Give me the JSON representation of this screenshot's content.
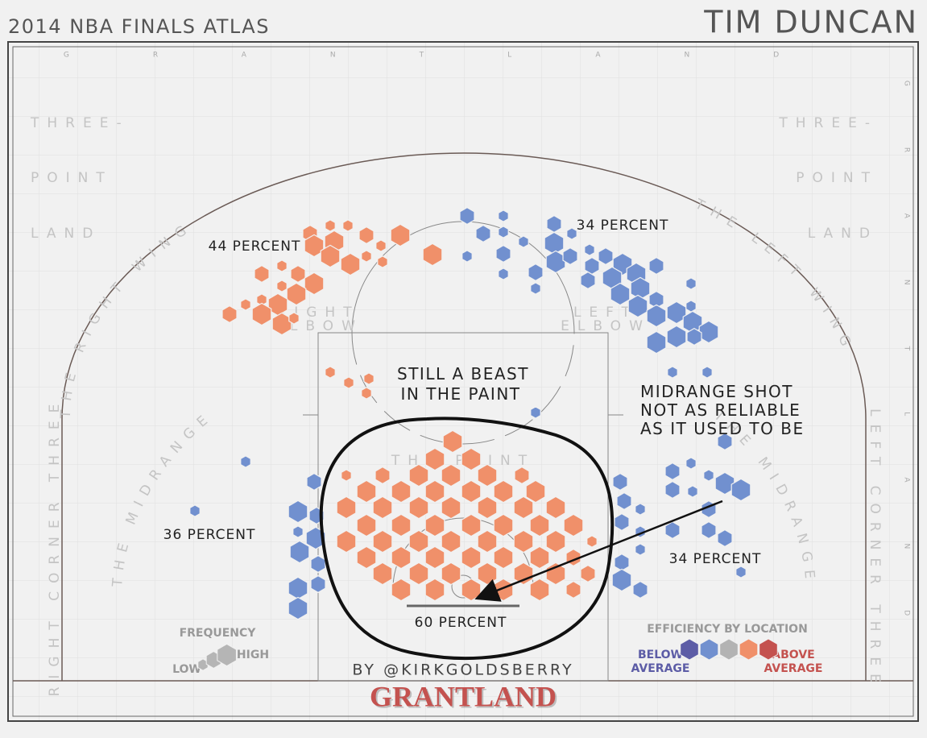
{
  "chart_data": {
    "type": "hexbin",
    "title": "2014 NBA FINALS ATLAS",
    "player": "TIM DUNCAN",
    "watermark": "GRANTLAND",
    "xlim": [
      -25,
      25
    ],
    "ylim": [
      -5.75,
      33
    ],
    "zones": {
      "three_left": [
        "THREE-",
        "POINT",
        "LAND"
      ],
      "three_right": [
        "THREE-",
        "POINT",
        "LAND"
      ],
      "right_wing": "THE RIGHT WING",
      "left_wing": "THE LEFT WING",
      "midrange_left": "THE MIDRANGE",
      "midrange_right": "THE MIDRANGE",
      "right_elbow": [
        "RIGHT",
        "ELBOW"
      ],
      "left_elbow": [
        "LEFT",
        "ELBOW"
      ],
      "paint": "THE PAINT",
      "right_corner": "RIGHT CORNER THREE",
      "left_corner": "LEFT CORNER THREE"
    },
    "annotations": {
      "right_wing": "44 PERCENT",
      "left_wing": "34 PERCENT",
      "right_mid": "36 PERCENT",
      "left_mid": "34 PERCENT",
      "paint": "60 PERCENT",
      "paint_note": [
        "STILL A BEAST",
        "IN THE PAINT"
      ],
      "mid_note": [
        "MIDRANGE SHOT",
        "NOT AS RELIABLE",
        "AS IT USED TO BE"
      ]
    },
    "hexes": {
      "x": [
        -9.5,
        -8.25,
        -7.15,
        -9.25,
        -8,
        -8.25,
        -6,
        -5.1,
        -3.9,
        -7,
        -6,
        -5,
        -1.9,
        -11.25,
        -12.5,
        -11.25,
        -10.25,
        -9.25,
        -10.35,
        -11.5,
        -12.5,
        -12.5,
        -13.5,
        -14.5,
        -11.25,
        -10.5,
        -8.25,
        -7.1,
        -6,
        -5.85,
        -0.65,
        -1.75,
        0.5,
        -7.25,
        -5,
        -2.75,
        -0.75,
        1.5,
        3.65,
        -6,
        -3.85,
        -1.75,
        0.5,
        2.5,
        4.5,
        -7.25,
        -5,
        -2.75,
        -0.75,
        1.5,
        3.75,
        5.75,
        -6,
        -3.85,
        -1.75,
        0.5,
        2.5,
        4.75,
        6.85,
        -7.25,
        -5,
        -2.75,
        -0.75,
        1.5,
        3.75,
        5.75,
        8,
        -6,
        -3.85,
        -1.75,
        0.5,
        2.5,
        4.75,
        6.85,
        -5,
        -2.75,
        -0.75,
        1.5,
        3.75,
        5.75,
        7.75,
        -3.85,
        -1.75,
        0.5,
        2.5,
        4.75,
        6.85,
        0.25,
        1.25,
        2.5,
        0.25,
        2.5,
        2.5,
        2.5,
        3.75,
        4.5,
        4.5,
        5.65,
        5.65,
        6.75,
        5.75,
        6.65,
        7.85,
        8,
        7.75,
        8.85,
        9.9,
        10.75,
        12,
        9.25,
        9.75,
        11,
        10.85,
        12,
        12,
        13.25,
        14.15,
        14.15,
        14.25,
        15.25,
        12,
        13.25,
        14.35,
        13,
        15.15,
        16.25,
        14.15,
        13,
        15.25,
        16.25,
        17.25,
        13,
        14.25,
        15.25,
        13,
        15.25,
        16.25,
        17.25,
        4.5,
        9.75,
        10,
        11,
        9.85,
        11,
        11,
        9.85,
        9.85,
        11,
        -13.5,
        -16.65,
        -9.25,
        -10.25,
        -9.1,
        -9.15,
        -10.25,
        -10.15,
        -9,
        -10.25,
        -10.25,
        -9
      ],
      "y": [
        22,
        22.5,
        22.5,
        21.25,
        21.5,
        20.6,
        21.9,
        21.25,
        21.9,
        20.1,
        20.6,
        20.25,
        20.7,
        20,
        19.5,
        18.75,
        19.5,
        18.9,
        18.25,
        17.6,
        17.9,
        17,
        17.6,
        17,
        16.4,
        16.75,
        13.4,
        12.75,
        12.1,
        13,
        9.1,
        8,
        8,
        7,
        7,
        7,
        7,
        7,
        7,
        6,
        6,
        6,
        6,
        6,
        6,
        5,
        5,
        5,
        5,
        5,
        5,
        5,
        3.9,
        3.9,
        3.9,
        3.9,
        3.9,
        3.9,
        3.9,
        2.9,
        2.9,
        2.9,
        2.9,
        2.9,
        2.9,
        2.9,
        2.9,
        1.9,
        1.9,
        1.9,
        1.9,
        1.9,
        1.9,
        1.9,
        0.9,
        0.9,
        0.9,
        0.9,
        0.9,
        0.9,
        0.9,
        -0.1,
        -0.1,
        -0.1,
        -0.1,
        -0.1,
        -0.1,
        23.1,
        22,
        23.1,
        20.6,
        22.1,
        20.75,
        19.5,
        21.5,
        19.6,
        18.6,
        22.6,
        21.4,
        22,
        20.25,
        20.6,
        21,
        20,
        19.1,
        20.6,
        20.1,
        19.5,
        20,
        19.25,
        18.25,
        18.6,
        17.5,
        17.9,
        16.9,
        17.1,
        18.9,
        17.5,
        16.5,
        15.9,
        15.25,
        15.6,
        15.6,
        13.4,
        13.4,
        9.1,
        7.75,
        7.25,
        7,
        6.5,
        6.1,
        6.1,
        6,
        4.9,
        3.6,
        3.6,
        3.1,
        1,
        10.9,
        6.6,
        5.4,
        4.9,
        4.1,
        3.5,
        2.4,
        1.6,
        0.5,
        -0.1,
        7.85,
        4.8,
        6.6,
        4.75,
        4.5,
        3.1,
        3.5,
        2.25,
        1.5,
        0,
        -1.25,
        0.25
      ],
      "frequency": [
        2,
        1,
        1,
        3,
        3,
        3,
        2,
        1,
        3,
        3,
        1,
        1,
        3,
        1,
        2,
        1,
        2,
        3,
        3,
        3,
        1,
        3,
        1,
        2,
        3,
        1,
        1,
        1,
        1,
        1,
        3,
        3,
        3,
        1,
        2,
        3,
        3,
        3,
        2,
        3,
        3,
        3,
        3,
        3,
        3,
        3,
        3,
        3,
        3,
        3,
        3,
        3,
        3,
        3,
        3,
        3,
        3,
        3,
        3,
        3,
        3,
        3,
        3,
        3,
        3,
        3,
        1,
        3,
        3,
        3,
        3,
        3,
        3,
        2,
        3,
        3,
        3,
        3,
        3,
        3,
        2,
        3,
        3,
        3,
        3,
        3,
        2,
        2,
        2,
        1,
        1,
        1,
        2,
        1,
        1,
        2,
        1,
        2,
        3,
        1,
        3,
        2,
        1,
        2,
        2,
        2,
        3,
        3,
        2,
        3,
        3,
        3,
        3,
        2,
        3,
        3,
        1,
        1,
        3,
        3,
        3,
        3,
        2,
        1,
        1,
        2,
        1,
        2,
        1,
        3,
        3,
        2,
        1,
        2,
        2,
        2,
        2,
        1,
        1,
        2,
        2,
        1,
        2,
        1,
        1,
        2,
        3,
        2,
        1,
        1,
        2,
        3,
        2,
        3,
        1,
        3,
        2,
        3,
        3,
        2
      ],
      "efficiency": [
        1,
        1,
        1,
        1,
        1,
        1,
        1,
        1,
        1,
        1,
        1,
        1,
        1,
        1,
        1,
        1,
        1,
        1,
        1,
        1,
        1,
        1,
        1,
        1,
        1,
        1,
        1,
        1,
        1,
        1,
        1,
        1,
        1,
        1,
        1,
        1,
        1,
        1,
        1,
        1,
        1,
        1,
        1,
        1,
        1,
        1,
        1,
        1,
        1,
        1,
        1,
        1,
        1,
        1,
        1,
        1,
        1,
        1,
        1,
        1,
        1,
        1,
        1,
        1,
        1,
        1,
        1,
        1,
        1,
        1,
        1,
        1,
        1,
        1,
        1,
        1,
        1,
        1,
        1,
        1,
        1,
        1,
        1,
        1,
        1,
        1,
        1,
        -1,
        -1,
        -1,
        -1,
        -1,
        -1,
        -1,
        -1,
        -1,
        -1,
        -1,
        -1,
        -1,
        -1,
        -1,
        -1,
        -1,
        -1,
        -1,
        -1,
        -1,
        -1,
        -1,
        -1,
        -1,
        -1,
        -1,
        -1,
        -1,
        -1,
        -1,
        -1,
        -1,
        -1,
        -1,
        -1,
        -1,
        -1,
        -1,
        -1,
        -1,
        -1,
        -1,
        -1,
        -1,
        -1,
        -1,
        -1,
        -1,
        -1,
        -1,
        -1,
        -1,
        -1,
        -1,
        -1,
        -1,
        -1,
        -1,
        -1,
        -1,
        -1,
        -1,
        -1,
        -1,
        -1,
        -1,
        -1,
        -1,
        -1,
        -1,
        -1,
        -1
      ]
    },
    "legend": {
      "frequency_title": "FREQUENCY",
      "low": "LOW",
      "high": "HIGH",
      "frequency_levels": [
        1,
        2,
        3
      ],
      "frequency_color": "#b5b5b5",
      "efficiency_title": "EFFICIENCY BY LOCATION",
      "below": [
        "BELOW",
        "AVERAGE"
      ],
      "above": [
        "ABOVE",
        "AVERAGE"
      ],
      "efficiency_levels": [
        -2,
        -1,
        0,
        1,
        2
      ],
      "efficiency_colors": [
        "#5c5ca6",
        "#7190cf",
        "#b3b3b3",
        "#f0906a",
        "#c4524f"
      ]
    },
    "credit": "BY @KIRKGOLDSBERRY",
    "brand": "GRANTLAND"
  }
}
